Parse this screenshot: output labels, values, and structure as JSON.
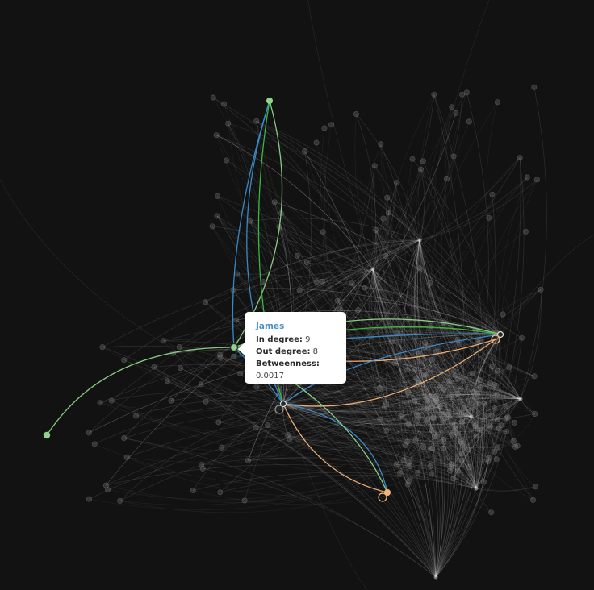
{
  "tooltip": {
    "name": "James",
    "rows": [
      {
        "label": "In degree:",
        "value": "9"
      },
      {
        "label": "Out degree:",
        "value": "8"
      },
      {
        "label": "Betweenness:",
        "value": "0.0017"
      }
    ]
  },
  "colors": {
    "background": "#121212",
    "edge_default": "#ffffff",
    "node_default": "#8a8a8a",
    "highlight_green": "#8fd48a",
    "highlight_green_dark": "#3fbf3f",
    "highlight_blue": "#3c8fd0",
    "highlight_orange": "#f2b47a",
    "tooltip_title": "#4a8fc4"
  }
}
